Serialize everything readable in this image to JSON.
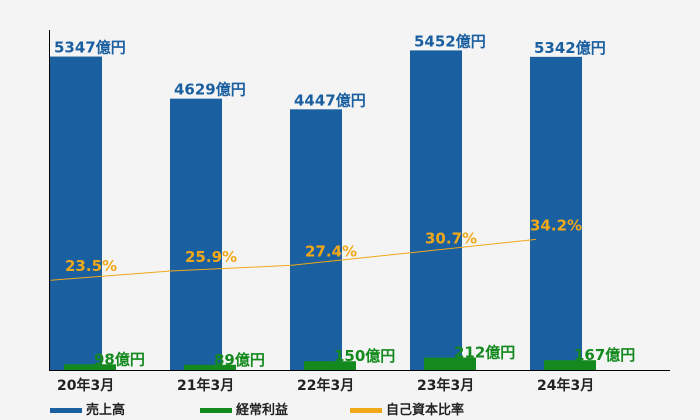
{
  "chart_data": {
    "type": "bar",
    "categories": [
      "20年3月",
      "21年3月",
      "22年3月",
      "23年3月",
      "24年3月"
    ],
    "series": [
      {
        "name": "売上高",
        "kind": "bar",
        "color": "#1a5fa0",
        "unit": "億円",
        "values": [
          5347,
          4629,
          4447,
          5452,
          5342
        ],
        "labels": [
          "5347億円",
          "4629億円",
          "4447億円",
          "5452億円",
          "5342億円"
        ]
      },
      {
        "name": "経常利益",
        "kind": "bar",
        "color": "#148a1e",
        "unit": "億円",
        "values": [
          98,
          89,
          150,
          212,
          167
        ],
        "labels": [
          "98億円",
          "89億円",
          "150億円",
          "212億円",
          "167億円"
        ]
      },
      {
        "name": "自己資本比率",
        "kind": "line",
        "color": "#f0a818",
        "unit": "%",
        "values": [
          23.5,
          25.9,
          27.4,
          30.7,
          34.2
        ],
        "labels": [
          "23.5%",
          "25.9%",
          "27.4%",
          "30.7%",
          "34.2%"
        ]
      }
    ],
    "bar_ylim": [
      0,
      5800
    ],
    "line_ylim": [
      0,
      89
    ],
    "grid": false,
    "legend_position": "bottom-left"
  }
}
